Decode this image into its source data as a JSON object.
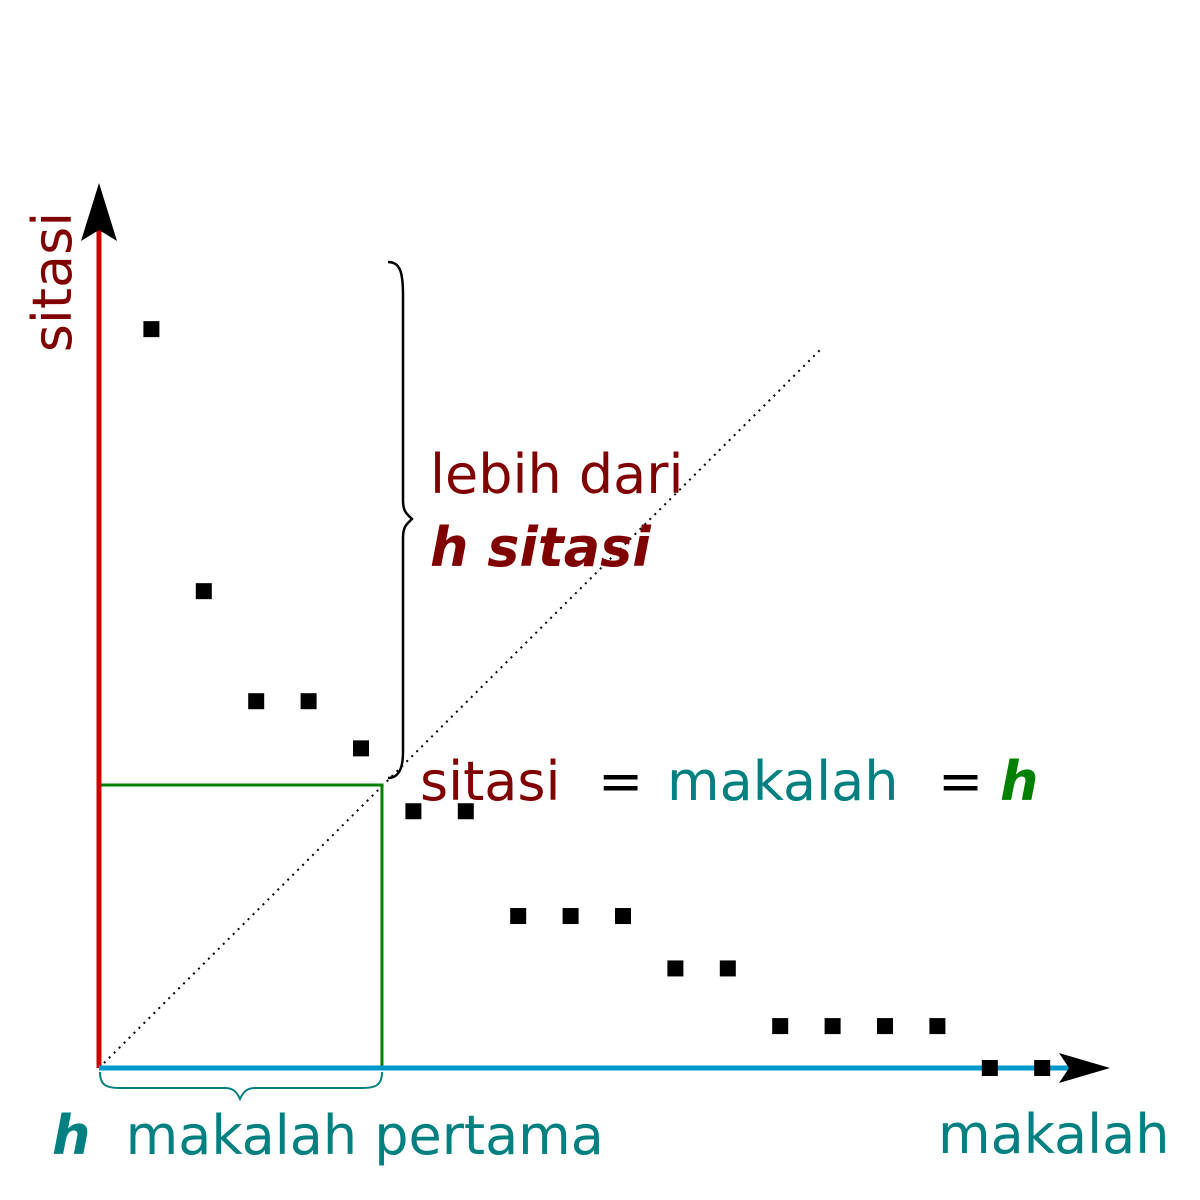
{
  "labels": {
    "y_axis": "sitasi",
    "x_axis": "makalah",
    "brace_line1": "lebih dari",
    "brace_line2": "h sitasi",
    "eq_sitasi": "sitasi",
    "eq_equals1": "=",
    "eq_makalah": "makalah",
    "eq_equals2": "=",
    "eq_h": "h",
    "bottom_h": "h",
    "bottom_rest": "makalah pertama"
  },
  "colors": {
    "y_axis": "#cc0000",
    "x_axis": "#0099cc",
    "h_box": "#008000",
    "sitasi_text": "#800000",
    "makalah_text": "#008080",
    "h_text": "#008000",
    "points": "#000000"
  },
  "chart_data": {
    "type": "scatter",
    "h": 5.4,
    "points": [
      {
        "x": 1,
        "y": 14.1
      },
      {
        "x": 2,
        "y": 9.1
      },
      {
        "x": 3,
        "y": 7.0
      },
      {
        "x": 4,
        "y": 7.0
      },
      {
        "x": 5,
        "y": 6.1
      },
      {
        "x": 6,
        "y": 4.9
      },
      {
        "x": 7,
        "y": 4.9
      },
      {
        "x": 8,
        "y": 2.9
      },
      {
        "x": 9,
        "y": 2.9
      },
      {
        "x": 10,
        "y": 2.9
      },
      {
        "x": 11,
        "y": 1.9
      },
      {
        "x": 12,
        "y": 1.9
      },
      {
        "x": 13,
        "y": 0.8
      },
      {
        "x": 14,
        "y": 0.8
      },
      {
        "x": 15,
        "y": 0.8
      },
      {
        "x": 16,
        "y": 0.8
      },
      {
        "x": 17,
        "y": 0
      },
      {
        "x": 18,
        "y": 0
      }
    ],
    "xlim": [
      0,
      19.5
    ],
    "ylim": [
      0,
      17.1
    ],
    "diagonal_reference_line": true,
    "grid": false
  }
}
